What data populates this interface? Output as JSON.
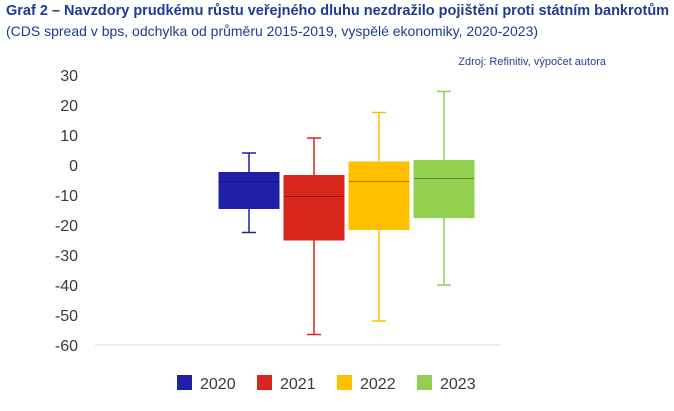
{
  "header": {
    "title": "Graf 2 – Navzdory prudkému růstu veřejného dluhu nezdražilo pojištění proti státním bankrotům",
    "subtitle": "(CDS spread v bps, odchylka od průměru 2015-2019, vyspělé ekonomiky, 2020-2023)",
    "source": "Zdroj: Refinitiv, výpočet autora"
  },
  "chart_data": {
    "type": "boxplot",
    "ylim": [
      -60,
      30
    ],
    "yticks": [
      30,
      20,
      10,
      0,
      -10,
      -20,
      -30,
      -40,
      -50,
      -60
    ],
    "grid": false,
    "legend_position": "bottom",
    "series": [
      {
        "name": "2020",
        "color": "#1f1fa8",
        "min": -22.5,
        "q1": -14.5,
        "median": -5.5,
        "q3": -2.5,
        "max": 4
      },
      {
        "name": "2021",
        "color": "#d9261c",
        "min": -56.5,
        "q1": -25,
        "median": -10.5,
        "q3": -3.5,
        "max": 9
      },
      {
        "name": "2022",
        "color": "#ffc000",
        "min": -52,
        "q1": -21.5,
        "median": -5.5,
        "q3": 1,
        "max": 17.5
      },
      {
        "name": "2023",
        "color": "#92d050",
        "min": -40,
        "q1": -17.5,
        "median": -4.5,
        "q3": 1.5,
        "max": 24.5
      }
    ]
  }
}
